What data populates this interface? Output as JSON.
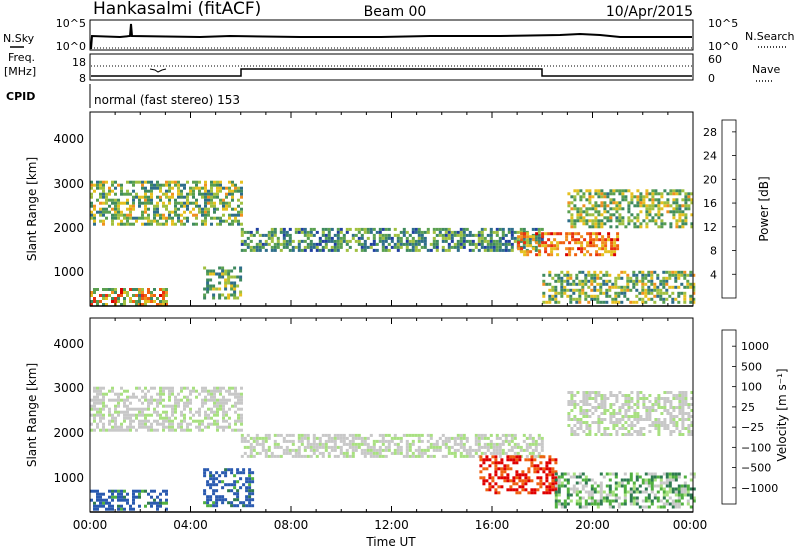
{
  "header": {
    "station": "Hankasalmi (fitACF)",
    "beam": "Beam 00",
    "date": "10/Apr/2015"
  },
  "top_panels": {
    "nsky_label": "N.Sky",
    "nsky_ticks": [
      "10^5",
      "10^0"
    ],
    "nsearch_label": "N.Search",
    "nsearch_ticks": [
      "10^5",
      "10^0"
    ],
    "freq_label_1": "Freq.",
    "freq_label_2": "[MHz]",
    "freq_ticks": [
      "18",
      "8"
    ],
    "nave_label": "Nave",
    "nave_ticks": [
      "60",
      "0"
    ],
    "cpid_label": "CPID",
    "cpid_text": "normal (fast stereo) 153"
  },
  "colors": {
    "power_scale": [
      "#0000ff",
      "#1f3fa0",
      "#2e6e8a",
      "#3f8a5e",
      "#5aa050",
      "#a0c040",
      "#e6c020",
      "#f09020",
      "#f06010",
      "#e83010",
      "#d80000"
    ],
    "velocity_scale": [
      "#1a3a9e",
      "#2a5ab0",
      "#2e7a50",
      "#50b040",
      "#a8e080",
      "#c8c8c8",
      "#c8c8c8",
      "#f0c040",
      "#f09020",
      "#f06010",
      "#e00000"
    ]
  },
  "chart_data": [
    {
      "type": "heatmap",
      "title": "",
      "ylabel": "Slant Range [km]",
      "xlabel": "",
      "x_ticks": [
        "00:00",
        "04:00",
        "08:00",
        "12:00",
        "16:00",
        "20:00",
        "00:00"
      ],
      "y_ticks": [
        "1000",
        "2000",
        "3000",
        "4000"
      ],
      "ylim": [
        180,
        4700
      ],
      "xlim_hours": [
        0,
        24
      ],
      "colorbar_label": "Power [dB]",
      "colorbar_ticks": [
        "4",
        "8",
        "12",
        "16",
        "20",
        "24",
        "28"
      ],
      "colorbar_range": [
        0,
        30
      ],
      "approx_echo_bands": [
        {
          "x_hours": [
            0,
            6
          ],
          "range_km": [
            2100,
            3100
          ],
          "power_db": [
            6,
            20
          ]
        },
        {
          "x_hours": [
            0,
            3
          ],
          "range_km": [
            250,
            600
          ],
          "power_db": [
            8,
            28
          ]
        },
        {
          "x_hours": [
            4.5,
            6
          ],
          "range_km": [
            400,
            1100
          ],
          "power_db": [
            6,
            18
          ]
        },
        {
          "x_hours": [
            6,
            18
          ],
          "range_km": [
            1500,
            2000
          ],
          "power_db": [
            4,
            16
          ]
        },
        {
          "x_hours": [
            17,
            21
          ],
          "range_km": [
            1400,
            1900
          ],
          "power_db": [
            16,
            28
          ]
        },
        {
          "x_hours": [
            19,
            24
          ],
          "range_km": [
            2000,
            2900
          ],
          "power_db": [
            8,
            20
          ]
        },
        {
          "x_hours": [
            18,
            24
          ],
          "range_km": [
            250,
            1000
          ],
          "power_db": [
            6,
            20
          ]
        }
      ]
    },
    {
      "type": "heatmap",
      "title": "",
      "ylabel": "Slant Range [km]",
      "xlabel": "Time UT",
      "x_ticks": [
        "00:00",
        "04:00",
        "08:00",
        "12:00",
        "16:00",
        "20:00",
        "00:00"
      ],
      "y_ticks": [
        "1000",
        "2000",
        "3000",
        "4000"
      ],
      "ylim": [
        180,
        4700
      ],
      "xlim_hours": [
        0,
        24
      ],
      "colorbar_label": "Velocity [m s⁻¹]",
      "colorbar_ticks": [
        "1000",
        "500",
        "100",
        "25",
        "−25",
        "−100",
        "−500",
        "−1000"
      ],
      "approx_echo_bands": [
        {
          "x_hours": [
            0,
            6
          ],
          "range_km": [
            2100,
            3100
          ],
          "velocity_ms": [
            -25,
            25
          ]
        },
        {
          "x_hours": [
            0,
            3
          ],
          "range_km": [
            250,
            700
          ],
          "velocity_ms": [
            25,
            500
          ]
        },
        {
          "x_hours": [
            4.5,
            6.5
          ],
          "range_km": [
            300,
            1200
          ],
          "velocity_ms": [
            25,
            500
          ]
        },
        {
          "x_hours": [
            6,
            18
          ],
          "range_km": [
            1500,
            2000
          ],
          "velocity_ms": [
            -25,
            25
          ]
        },
        {
          "x_hours": [
            15.5,
            18.5
          ],
          "range_km": [
            600,
            1500
          ],
          "velocity_ms": [
            -1000,
            -100
          ]
        },
        {
          "x_hours": [
            19,
            24
          ],
          "range_km": [
            2000,
            3000
          ],
          "velocity_ms": [
            -25,
            25
          ]
        },
        {
          "x_hours": [
            18.5,
            24
          ],
          "range_km": [
            300,
            1100
          ],
          "velocity_ms": [
            -25,
            100
          ]
        }
      ]
    }
  ]
}
